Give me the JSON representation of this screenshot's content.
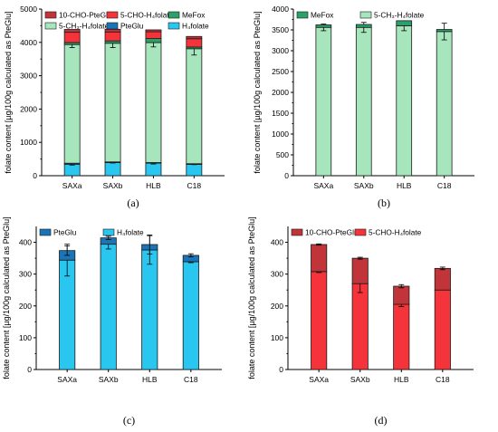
{
  "chart_data": [
    {
      "id": "a",
      "panel_label": "(a)",
      "type": "bar",
      "stacked": true,
      "categories": [
        "SAXa",
        "SAXb",
        "HLB",
        "C18"
      ],
      "ylabel": "folate content [µg/100g calculated as PteGlu]",
      "ylim": [
        0,
        5000
      ],
      "yticks": [
        0,
        1000,
        2000,
        3000,
        4000,
        5000
      ],
      "legend_columns": 3,
      "series": [
        {
          "name": "H₄folate",
          "color": "#29c6f0",
          "values": [
            345,
            394,
            377,
            340
          ],
          "errors": [
            25,
            12,
            25,
            8
          ]
        },
        {
          "name": "PteGlu",
          "color": "#1a75b8",
          "values": [
            30,
            20,
            17,
            20
          ],
          "errors": [
            0,
            0,
            0,
            0
          ]
        },
        {
          "name": "5-CH₃-H₄folate",
          "color": "#a7e6bd",
          "values": [
            3560,
            3560,
            3600,
            3450
          ],
          "errors": [
            90,
            130,
            130,
            190
          ]
        },
        {
          "name": "MeFox",
          "color": "#2aa169",
          "values": [
            60,
            70,
            120,
            50
          ],
          "errors": [
            0,
            0,
            0,
            0
          ]
        },
        {
          "name": "5-CHO-H₄folate",
          "color": "#f4343a",
          "values": [
            308,
            270,
            205,
            250
          ],
          "errors": [
            0,
            0,
            0,
            0
          ]
        },
        {
          "name": "10-CHO-PteGlu",
          "color": "#c0343a",
          "values": [
            85,
            80,
            57,
            68
          ],
          "errors": [
            0,
            0,
            0,
            0
          ]
        }
      ]
    },
    {
      "id": "b",
      "panel_label": "(b)",
      "type": "bar",
      "stacked": true,
      "categories": [
        "SAXa",
        "SAXb",
        "HLB",
        "C18"
      ],
      "ylabel": "folate content [µg/100g calculated as PteGlu]",
      "ylim": [
        0,
        4000
      ],
      "yticks": [
        0,
        500,
        1000,
        1500,
        2000,
        2500,
        3000,
        3500,
        4000
      ],
      "legend_columns": 2,
      "series": [
        {
          "name": "5-CH₃-H₄folate",
          "color": "#a7e6bd",
          "values": [
            3560,
            3560,
            3600,
            3460
          ],
          "errors": [
            80,
            120,
            120,
            200
          ]
        },
        {
          "name": "MeFox",
          "color": "#2aa169",
          "values": [
            60,
            70,
            120,
            50
          ],
          "errors": [
            0,
            0,
            0,
            0
          ]
        }
      ]
    },
    {
      "id": "c",
      "panel_label": "(c)",
      "type": "bar",
      "stacked": true,
      "categories": [
        "SAXa",
        "SAXb",
        "HLB",
        "C18"
      ],
      "ylabel": "folate content [µg/100g calculated as PteGlu]",
      "ylim": [
        0,
        450
      ],
      "yticks": [
        0,
        100,
        200,
        300,
        400
      ],
      "legend_columns": 2,
      "series": [
        {
          "name": "H₄folate",
          "color": "#29c6f0",
          "values": [
            344,
            394,
            376,
            339
          ],
          "errors": [
            50,
            15,
            45,
            3
          ]
        },
        {
          "name": "PteGlu",
          "color": "#1a75b8",
          "values": [
            30,
            20,
            17,
            20
          ],
          "errors": [
            15,
            5,
            30,
            5
          ]
        }
      ]
    },
    {
      "id": "d",
      "panel_label": "(d)",
      "type": "bar",
      "stacked": true,
      "categories": [
        "SAXa",
        "SAXb",
        "HLB",
        "C18"
      ],
      "ylabel": "folate content [µg/100g calculated as PteGlu]",
      "ylim": [
        0,
        450
      ],
      "yticks": [
        0,
        100,
        200,
        300,
        400
      ],
      "legend_columns": 2,
      "series": [
        {
          "name": "5-CHO-H₄folate",
          "color": "#f4343a",
          "values": [
            308,
            270,
            205,
            250
          ],
          "errors": [
            3,
            28,
            7,
            0
          ]
        },
        {
          "name": "10-CHO-PteGlu",
          "color": "#c0343a",
          "values": [
            85,
            80,
            57,
            68
          ],
          "errors": [
            2,
            3,
            5,
            4
          ]
        }
      ]
    }
  ]
}
